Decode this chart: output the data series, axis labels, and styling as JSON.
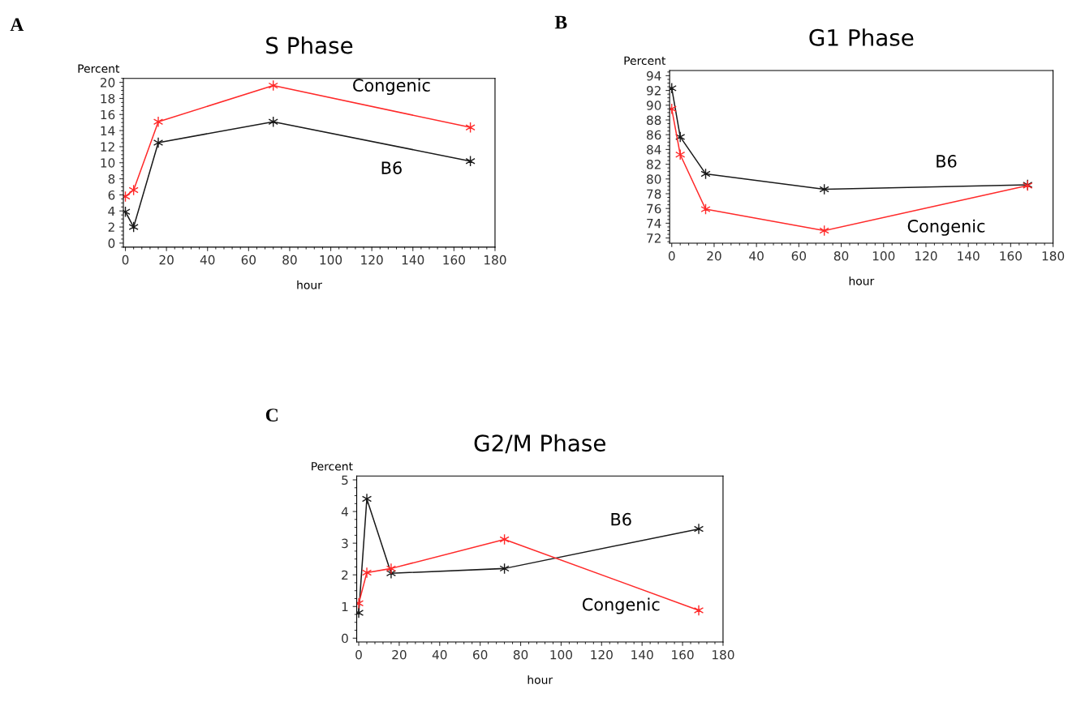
{
  "chart_data": [
    {
      "type": "line",
      "title": "S Phase",
      "xlabel": "hour",
      "ylabel": "Percent",
      "annotations": [
        "A"
      ],
      "marker": "cross",
      "xlim": [
        -1,
        180
      ],
      "xticks": [
        0,
        20,
        40,
        60,
        80,
        100,
        120,
        140,
        160,
        180
      ],
      "ylim": [
        -0.5,
        20.5
      ],
      "yticks": [
        0,
        2,
        4,
        6,
        8,
        10,
        12,
        14,
        16,
        18,
        20
      ],
      "grid": false,
      "x": [
        0,
        4,
        16,
        72,
        168
      ],
      "series": [
        {
          "name": "Congenic",
          "color": "#ff2a2a",
          "values": [
            5.8,
            6.6,
            15.1,
            19.6,
            14.4
          ]
        },
        {
          "name": "B6",
          "color": "#1a1a1a",
          "values": [
            3.9,
            2.0,
            12.5,
            15.1,
            10.2
          ]
        }
      ]
    },
    {
      "type": "line",
      "title": "G1 Phase",
      "xlabel": "hour",
      "ylabel": "Percent",
      "annotations": [
        "B"
      ],
      "marker": "cross",
      "xlim": [
        -1,
        180
      ],
      "xticks": [
        0,
        20,
        40,
        60,
        80,
        100,
        120,
        140,
        160,
        180
      ],
      "ylim": [
        71.3,
        94.7
      ],
      "yticks": [
        72,
        74,
        76,
        78,
        80,
        82,
        84,
        86,
        88,
        90,
        92,
        94
      ],
      "grid": false,
      "x": [
        0,
        4,
        16,
        72,
        168
      ],
      "series": [
        {
          "name": "B6",
          "color": "#1a1a1a",
          "values": [
            92.3,
            85.7,
            80.7,
            78.6,
            79.2
          ]
        },
        {
          "name": "Congenic",
          "color": "#ff2a2a",
          "values": [
            89.5,
            83.3,
            75.9,
            73.0,
            79.1
          ]
        }
      ]
    },
    {
      "type": "line",
      "title": "G2/M Phase",
      "xlabel": "hour",
      "ylabel": "Percent",
      "annotations": [
        "C"
      ],
      "marker": "cross",
      "xlim": [
        -1,
        180
      ],
      "xticks": [
        0,
        20,
        40,
        60,
        80,
        100,
        120,
        140,
        160,
        180
      ],
      "ylim": [
        -0.12,
        5.12
      ],
      "yticks": [
        0,
        1,
        2,
        3,
        4,
        5
      ],
      "grid": false,
      "x": [
        0,
        4,
        16,
        72,
        168
      ],
      "series": [
        {
          "name": "B6",
          "color": "#1a1a1a",
          "values": [
            0.8,
            4.4,
            2.05,
            2.2,
            3.45
          ]
        },
        {
          "name": "Congenic",
          "color": "#ff2a2a",
          "values": [
            1.1,
            2.07,
            2.2,
            3.12,
            0.88
          ]
        }
      ]
    }
  ]
}
